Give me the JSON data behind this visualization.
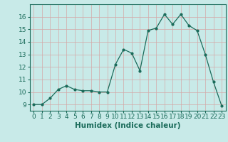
{
  "x": [
    0,
    1,
    2,
    3,
    4,
    5,
    6,
    7,
    8,
    9,
    10,
    11,
    12,
    13,
    14,
    15,
    16,
    17,
    18,
    19,
    20,
    21,
    22,
    23
  ],
  "y": [
    9,
    9,
    9.5,
    10.2,
    10.5,
    10.2,
    10.1,
    10.1,
    10.0,
    10.0,
    12.2,
    13.4,
    13.1,
    11.7,
    14.9,
    15.1,
    16.2,
    15.4,
    16.2,
    15.3,
    14.9,
    13.0,
    10.8,
    8.9
  ],
  "line_color": "#1a6b5a",
  "marker_color": "#1a6b5a",
  "bg_color": "#c8eae8",
  "grid_color": "#d4a8a8",
  "xlabel": "Humidex (Indice chaleur)",
  "ylim": [
    8.5,
    17.0
  ],
  "xlim": [
    -0.5,
    23.5
  ],
  "yticks": [
    9,
    10,
    11,
    12,
    13,
    14,
    15,
    16
  ],
  "xticks": [
    0,
    1,
    2,
    3,
    4,
    5,
    6,
    7,
    8,
    9,
    10,
    11,
    12,
    13,
    14,
    15,
    16,
    17,
    18,
    19,
    20,
    21,
    22,
    23
  ],
  "tick_fontsize": 6.5,
  "xlabel_fontsize": 7.5,
  "axis_color": "#1a6b5a",
  "spine_color": "#1a6b5a"
}
